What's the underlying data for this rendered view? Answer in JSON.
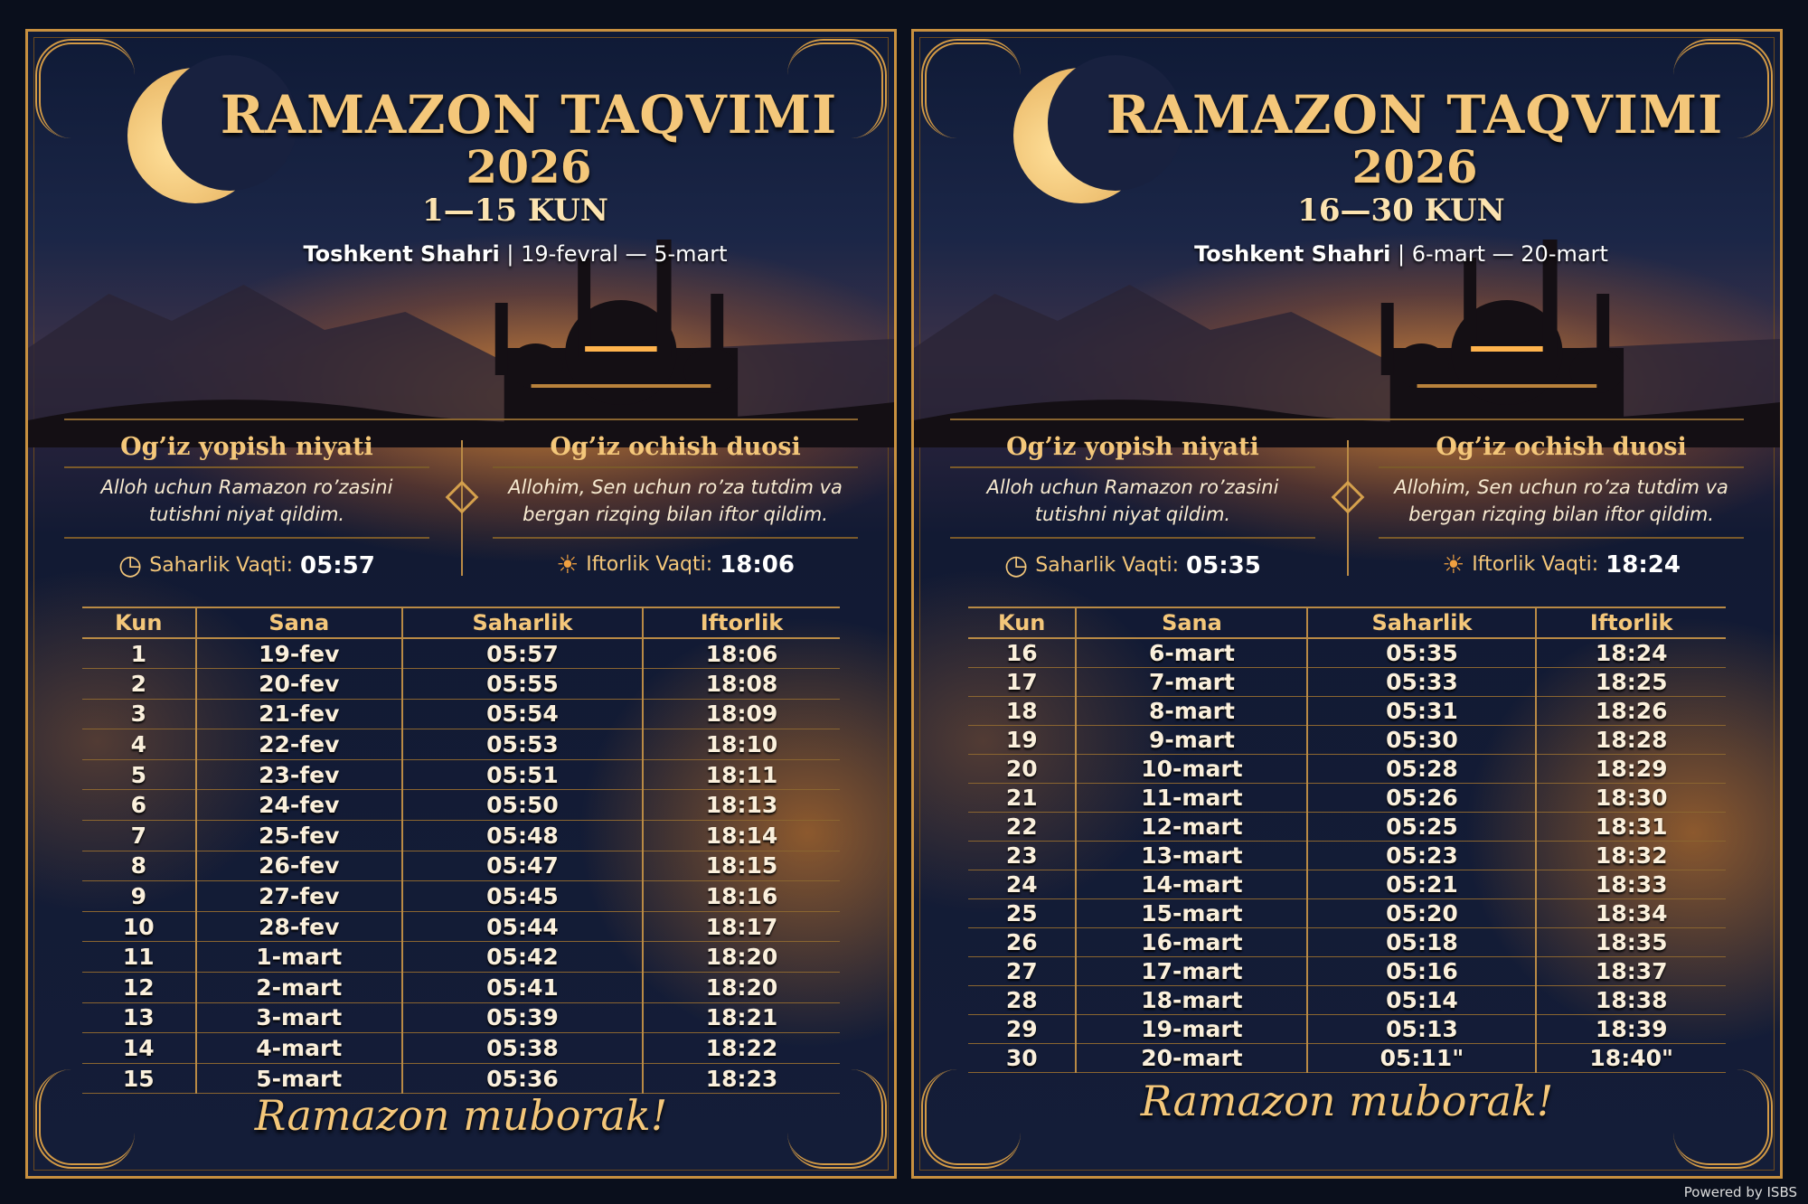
{
  "colors": {
    "gold": "#f4c77a",
    "navy": "#141d38",
    "glow": "#f0a040"
  },
  "cards": [
    {
      "title": "RAMAZON TAQVIMI",
      "year": "2026",
      "range": "1—15 KUN",
      "city": "Toshkent Shahri",
      "dates": "19-fevral — 5-mart",
      "niyat_title": "Og’iz yopish niyati",
      "niyat_text": "Alloh uchun Ramazon ro’zasini tutishni niyat qildim.",
      "duo_title": "Og’iz ochish duosi",
      "duo_text": "Allohim, Sen uchun ro’za tutdim va bergan rizqing bilan iftor qildim.",
      "saharlik_label": "Saharlik Vaqti:",
      "saharlik_time": "05:57",
      "iftorlik_label": "Iftorlik Vaqti:",
      "iftorlik_time": "18:06",
      "headers": [
        "Kun",
        "Sana",
        "Saharlik",
        "Iftorlik"
      ],
      "rows": [
        [
          "1",
          "19-fev",
          "05:57",
          "18:06"
        ],
        [
          "2",
          "20-fev",
          "05:55",
          "18:08"
        ],
        [
          "3",
          "21-fev",
          "05:54",
          "18:09"
        ],
        [
          "4",
          "22-fev",
          "05:53",
          "18:10"
        ],
        [
          "5",
          "23-fev",
          "05:51",
          "18:11"
        ],
        [
          "6",
          "24-fev",
          "05:50",
          "18:13"
        ],
        [
          "7",
          "25-fev",
          "05:48",
          "18:14"
        ],
        [
          "8",
          "26-fev",
          "05:47",
          "18:15"
        ],
        [
          "9",
          "27-fev",
          "05:45",
          "18:16"
        ],
        [
          "10",
          "28-fev",
          "05:44",
          "18:17"
        ],
        [
          "11",
          "1-mart",
          "05:42",
          "18:20"
        ],
        [
          "12",
          "2-mart",
          "05:41",
          "18:20"
        ],
        [
          "13",
          "3-mart",
          "05:39",
          "18:21"
        ],
        [
          "14",
          "4-mart",
          "05:38",
          "18:22"
        ],
        [
          "15",
          "5-mart",
          "05:36",
          "18:23"
        ]
      ],
      "footer": "Ramazon muborak!"
    },
    {
      "title": "RAMAZON TAQVIMI",
      "year": "2026",
      "range": "16—30 KUN",
      "city": "Toshkent Shahri",
      "dates": "6-mart — 20-mart",
      "niyat_title": "Og’iz yopish niyati",
      "niyat_text": "Alloh uchun Ramazon ro’zasini tutishni niyat qildim.",
      "duo_title": "Og’iz ochish duosi",
      "duo_text": "Allohim, Sen uchun ro’za tutdim va bergan rizqing bilan iftor qildim.",
      "saharlik_label": "Saharlik Vaqti:",
      "saharlik_time": "05:35",
      "iftorlik_label": "Iftorlik Vaqti:",
      "iftorlik_time": "18:24",
      "headers": [
        "Kun",
        "Sana",
        "Saharlik",
        "Iftorlik"
      ],
      "rows": [
        [
          "16",
          "6-mart",
          "05:35",
          "18:24"
        ],
        [
          "17",
          "7-mart",
          "05:33",
          "18:25"
        ],
        [
          "18",
          "8-mart",
          "05:31",
          "18:26"
        ],
        [
          "19",
          "9-mart",
          "05:30",
          "18:28"
        ],
        [
          "20",
          "10-mart",
          "05:28",
          "18:29"
        ],
        [
          "21",
          "11-mart",
          "05:26",
          "18:30"
        ],
        [
          "22",
          "12-mart",
          "05:25",
          "18:31"
        ],
        [
          "23",
          "13-mart",
          "05:23",
          "18:32"
        ],
        [
          "24",
          "14-mart",
          "05:21",
          "18:33"
        ],
        [
          "25",
          "15-mart",
          "05:20",
          "18:34"
        ],
        [
          "26",
          "16-mart",
          "05:18",
          "18:35"
        ],
        [
          "27",
          "17-mart",
          "05:16",
          "18:37"
        ],
        [
          "28",
          "18-mart",
          "05:14",
          "18:38"
        ],
        [
          "29",
          "19-mart",
          "05:13",
          "18:39"
        ],
        [
          "30",
          "20-mart",
          "05:11\"",
          "18:40\""
        ]
      ],
      "footer": "Ramazon muborak!"
    }
  ],
  "powered": "Powered by ISBS"
}
